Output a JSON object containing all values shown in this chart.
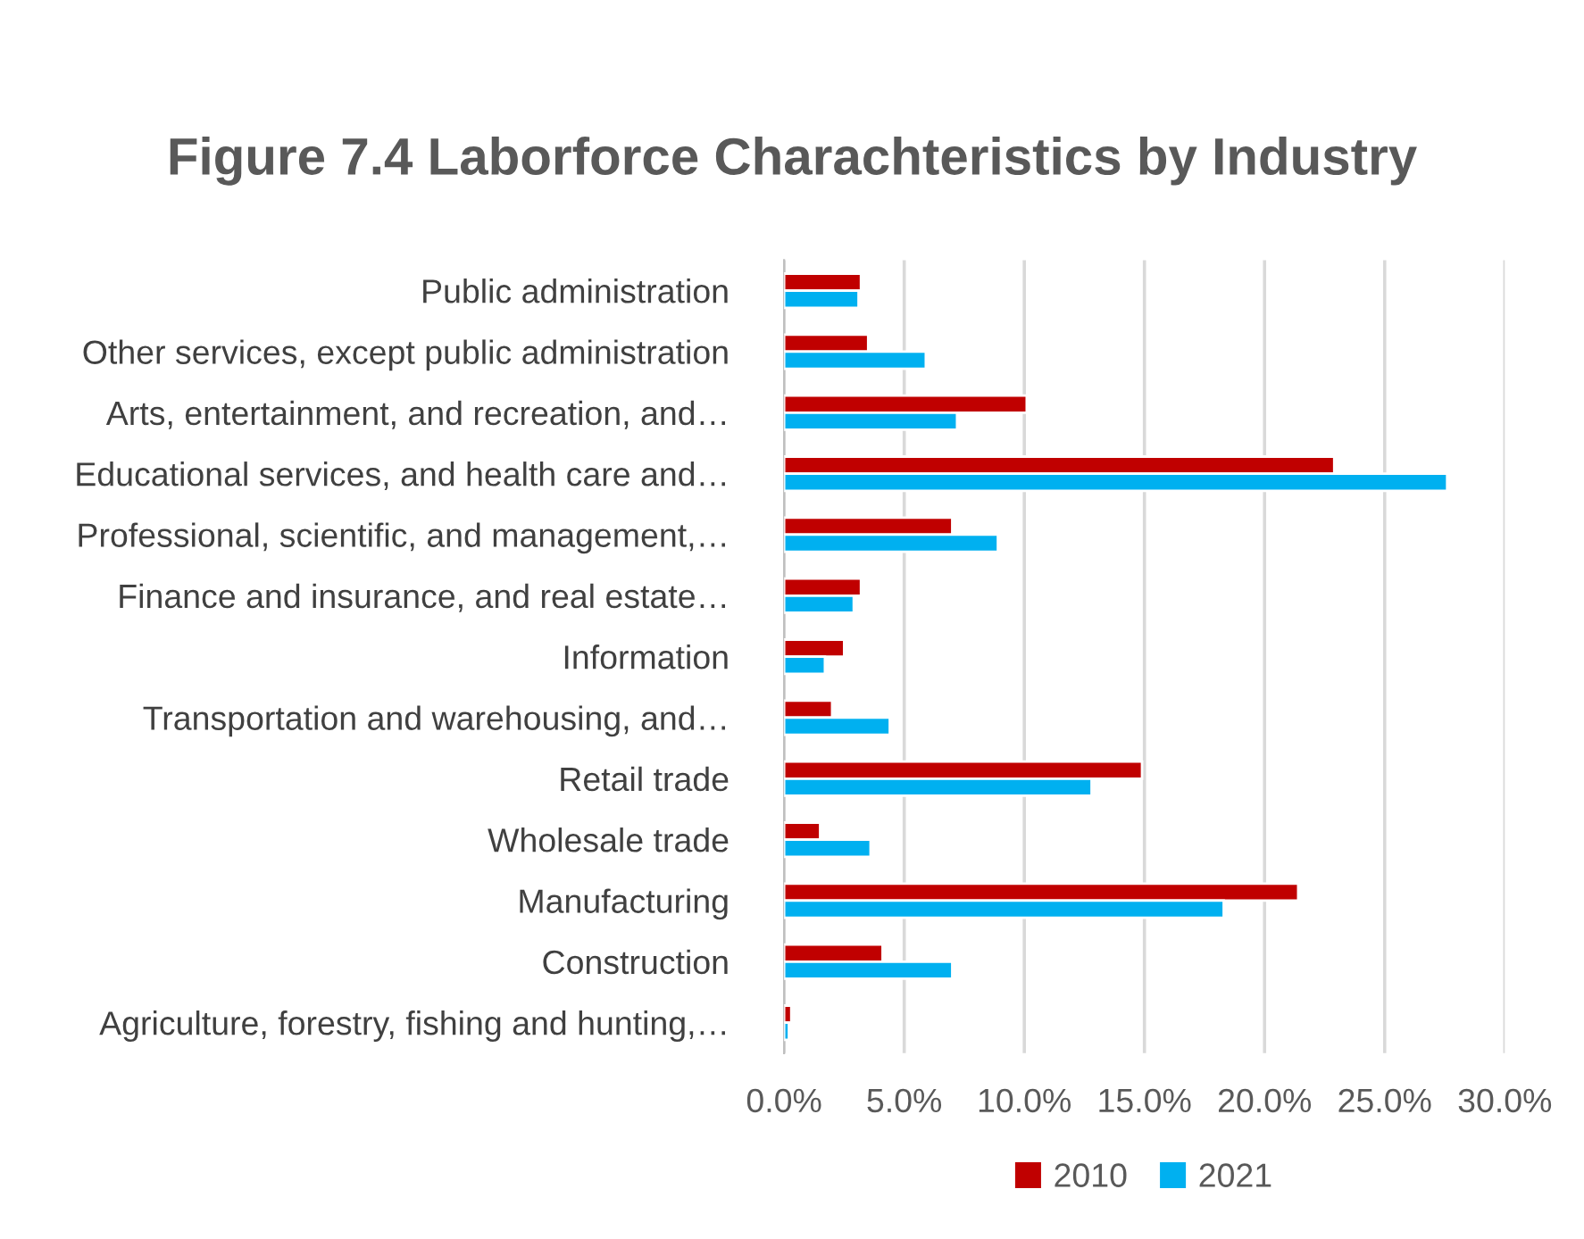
{
  "chart_data": {
    "type": "bar",
    "orientation": "horizontal",
    "title": "Figure 7.4 Laborforce Charachteristics by Industry",
    "categories": [
      "Public administration",
      "Other services, except public administration",
      "Arts, entertainment, and recreation, and…",
      "Educational services, and health care and…",
      "Professional, scientific, and management,…",
      "Finance and insurance, and real estate…",
      "Information",
      "Transportation and warehousing, and…",
      "Retail trade",
      "Wholesale trade",
      "Manufacturing",
      "Construction",
      "Agriculture, forestry, fishing and hunting,…"
    ],
    "series": [
      {
        "name": "2010",
        "color": "#c00000",
        "values": [
          3.2,
          3.5,
          10.1,
          22.9,
          7.0,
          3.2,
          2.5,
          2.0,
          14.9,
          1.5,
          21.4,
          4.1,
          0.3
        ]
      },
      {
        "name": "2021",
        "color": "#00b0f0",
        "values": [
          3.1,
          5.9,
          7.2,
          27.6,
          8.9,
          2.9,
          1.7,
          4.4,
          12.8,
          3.6,
          18.3,
          7.0,
          0.2
        ]
      }
    ],
    "xlim": [
      0,
      30
    ],
    "xticks": [
      {
        "value": 0,
        "label": "0.0%"
      },
      {
        "value": 5,
        "label": "5.0%"
      },
      {
        "value": 10,
        "label": "10.0%"
      },
      {
        "value": 15,
        "label": "15.0%"
      },
      {
        "value": 20,
        "label": "20.0%"
      },
      {
        "value": 25,
        "label": "25.0%"
      },
      {
        "value": 30,
        "label": "30.0%"
      }
    ],
    "grid": "x",
    "legend": "bottom"
  }
}
